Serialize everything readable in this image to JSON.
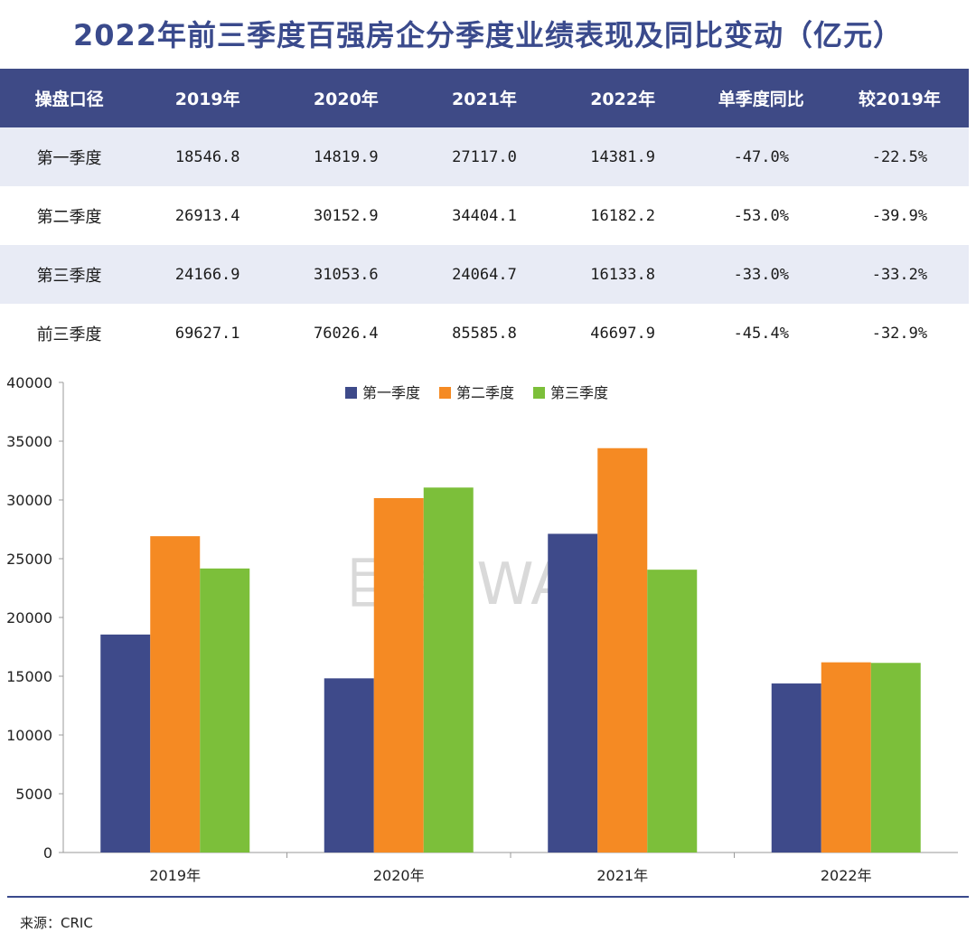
{
  "title": "2022年前三季度百强房企分季度业绩表现及同比变动（亿元）",
  "table": {
    "headers": [
      "操盘口径",
      "2019年",
      "2020年",
      "2021年",
      "2022年",
      "单季度同比",
      "较2019年"
    ],
    "rows": [
      [
        "第一季度",
        "18546.8",
        "14819.9",
        "27117.0",
        "14381.9",
        "-47.0%",
        "-22.5%"
      ],
      [
        "第二季度",
        "26913.4",
        "30152.9",
        "34404.1",
        "16182.2",
        "-53.0%",
        "-39.9%"
      ],
      [
        "第三季度",
        "24166.9",
        "31053.6",
        "24064.7",
        "16133.8",
        "-33.0%",
        "-33.2%"
      ],
      [
        "前三季度",
        "69627.1",
        "76026.4",
        "85585.8",
        "46697.9",
        "-45.4%",
        "-32.9%"
      ]
    ]
  },
  "watermark": "巨潮 WAVE",
  "source": "来源：CRIC",
  "colors": {
    "title": "#3a4a8c",
    "header_bg": "#3e4a86",
    "stripe": "#e8ebf5"
  },
  "chart_data": {
    "type": "bar",
    "categories": [
      "2019年",
      "2020年",
      "2021年",
      "2022年"
    ],
    "series": [
      {
        "name": "第一季度",
        "color": "#3e4a8a",
        "values": [
          18546.8,
          14819.9,
          27117.0,
          14381.9
        ]
      },
      {
        "name": "第二季度",
        "color": "#f58a23",
        "values": [
          26913.4,
          30152.9,
          34404.1,
          16182.2
        ]
      },
      {
        "name": "第三季度",
        "color": "#7cbf3a",
        "values": [
          24166.9,
          31053.6,
          24064.7,
          16133.8
        ]
      }
    ],
    "ylim": [
      0,
      40000
    ],
    "yticks": [
      0,
      5000,
      10000,
      15000,
      20000,
      25000,
      30000,
      35000,
      40000
    ],
    "legend_position": "top-center",
    "grid": false
  }
}
